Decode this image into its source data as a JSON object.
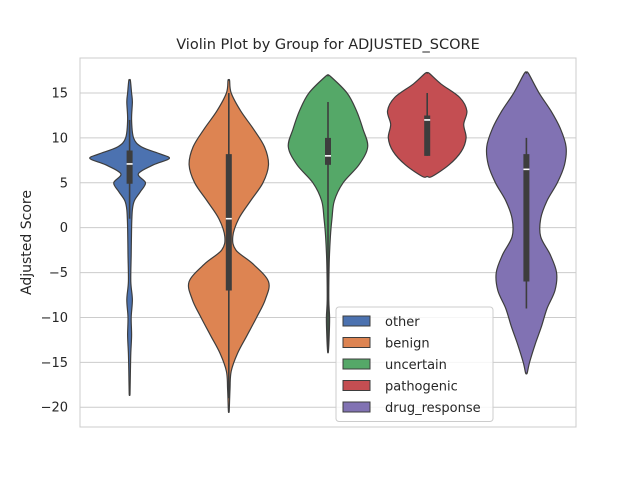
{
  "chart_data": {
    "type": "violin",
    "title": "Violin Plot by Group for ADJUSTED_SCORE",
    "xlabel": "",
    "ylabel": "Adjusted Score",
    "ylim": [
      -22.2,
      18.9
    ],
    "yticks": [
      15,
      10,
      5,
      0,
      -5,
      -10,
      -15,
      -20
    ],
    "grid": true,
    "legend_position": "lower-right",
    "groups": [
      {
        "name": "other",
        "color": "#4c72b0",
        "min": -18.5,
        "max": 16.4,
        "q1": 4.9,
        "median": 7.1,
        "q3": 8.6,
        "whisker_low": 1.0,
        "whisker_high": 12.0,
        "density": [
          [
            16.4,
            0.02
          ],
          [
            15.0,
            0.05
          ],
          [
            14.0,
            0.07
          ],
          [
            12.0,
            0.05
          ],
          [
            10.0,
            0.1
          ],
          [
            9.0,
            0.3
          ],
          [
            8.2,
            0.78
          ],
          [
            7.7,
            1.0
          ],
          [
            7.0,
            0.6
          ],
          [
            6.0,
            0.22
          ],
          [
            5.0,
            0.4
          ],
          [
            4.0,
            0.27
          ],
          [
            3.0,
            0.12
          ],
          [
            2.0,
            0.07
          ],
          [
            0.0,
            0.05
          ],
          [
            -3.0,
            0.04
          ],
          [
            -6.0,
            0.03
          ],
          [
            -8.0,
            0.07
          ],
          [
            -10.0,
            0.04
          ],
          [
            -12.0,
            0.05
          ],
          [
            -14.0,
            0.03
          ],
          [
            -16.0,
            0.02
          ],
          [
            -18.5,
            0.01
          ]
        ]
      },
      {
        "name": "benign",
        "color": "#dd8452",
        "min": -20.4,
        "max": 16.4,
        "q1": -7.0,
        "median": 1.0,
        "q3": 8.2,
        "whisker_low": -19.0,
        "whisker_high": 15.0,
        "density": [
          [
            16.4,
            0.02
          ],
          [
            15.0,
            0.06
          ],
          [
            13.0,
            0.3
          ],
          [
            11.0,
            0.62
          ],
          [
            9.0,
            0.9
          ],
          [
            7.0,
            1.0
          ],
          [
            5.0,
            0.86
          ],
          [
            3.0,
            0.55
          ],
          [
            1.0,
            0.25
          ],
          [
            -1.0,
            0.1
          ],
          [
            -2.5,
            0.18
          ],
          [
            -4.0,
            0.6
          ],
          [
            -6.0,
            1.0
          ],
          [
            -8.0,
            0.92
          ],
          [
            -10.0,
            0.7
          ],
          [
            -12.0,
            0.46
          ],
          [
            -14.0,
            0.22
          ],
          [
            -16.0,
            0.06
          ],
          [
            -18.0,
            0.03
          ],
          [
            -20.4,
            0.01
          ]
        ]
      },
      {
        "name": "uncertain",
        "color": "#55a868",
        "min": -13.8,
        "max": 16.9,
        "q1": 7.0,
        "median": 8.0,
        "q3": 10.0,
        "whisker_low": -13.5,
        "whisker_high": 14.0,
        "density": [
          [
            16.9,
            0.05
          ],
          [
            15.0,
            0.48
          ],
          [
            13.0,
            0.72
          ],
          [
            11.0,
            0.88
          ],
          [
            9.0,
            1.0
          ],
          [
            7.0,
            0.78
          ],
          [
            5.0,
            0.38
          ],
          [
            3.0,
            0.16
          ],
          [
            1.0,
            0.1
          ],
          [
            -1.0,
            0.06
          ],
          [
            -4.0,
            0.03
          ],
          [
            -8.0,
            0.02
          ],
          [
            -10.0,
            0.04
          ],
          [
            -12.0,
            0.03
          ],
          [
            -13.8,
            0.01
          ]
        ]
      },
      {
        "name": "pathogenic",
        "color": "#c44e52",
        "min": 5.7,
        "max": 17.2,
        "q1": 8.0,
        "median": 12.0,
        "q3": 12.5,
        "whisker_low": 8.0,
        "whisker_high": 15.0,
        "density": [
          [
            17.2,
            0.05
          ],
          [
            16.0,
            0.35
          ],
          [
            14.5,
            0.82
          ],
          [
            13.0,
            1.0
          ],
          [
            11.5,
            0.92
          ],
          [
            10.0,
            0.98
          ],
          [
            8.5,
            0.86
          ],
          [
            7.0,
            0.55
          ],
          [
            5.7,
            0.12
          ]
        ]
      },
      {
        "name": "drug_response",
        "color": "#8172b3",
        "min": -16.2,
        "max": 17.2,
        "q1": -6.0,
        "median": 6.5,
        "q3": 8.2,
        "whisker_low": -9.0,
        "whisker_high": 10.0,
        "density": [
          [
            17.2,
            0.05
          ],
          [
            15.0,
            0.32
          ],
          [
            13.0,
            0.62
          ],
          [
            11.0,
            0.86
          ],
          [
            9.0,
            1.0
          ],
          [
            7.0,
            0.96
          ],
          [
            5.0,
            0.78
          ],
          [
            3.0,
            0.52
          ],
          [
            1.0,
            0.36
          ],
          [
            -1.0,
            0.36
          ],
          [
            -3.0,
            0.6
          ],
          [
            -5.0,
            0.76
          ],
          [
            -7.0,
            0.72
          ],
          [
            -9.0,
            0.52
          ],
          [
            -11.0,
            0.38
          ],
          [
            -13.0,
            0.22
          ],
          [
            -15.0,
            0.08
          ],
          [
            -16.2,
            0.02
          ]
        ]
      }
    ]
  }
}
